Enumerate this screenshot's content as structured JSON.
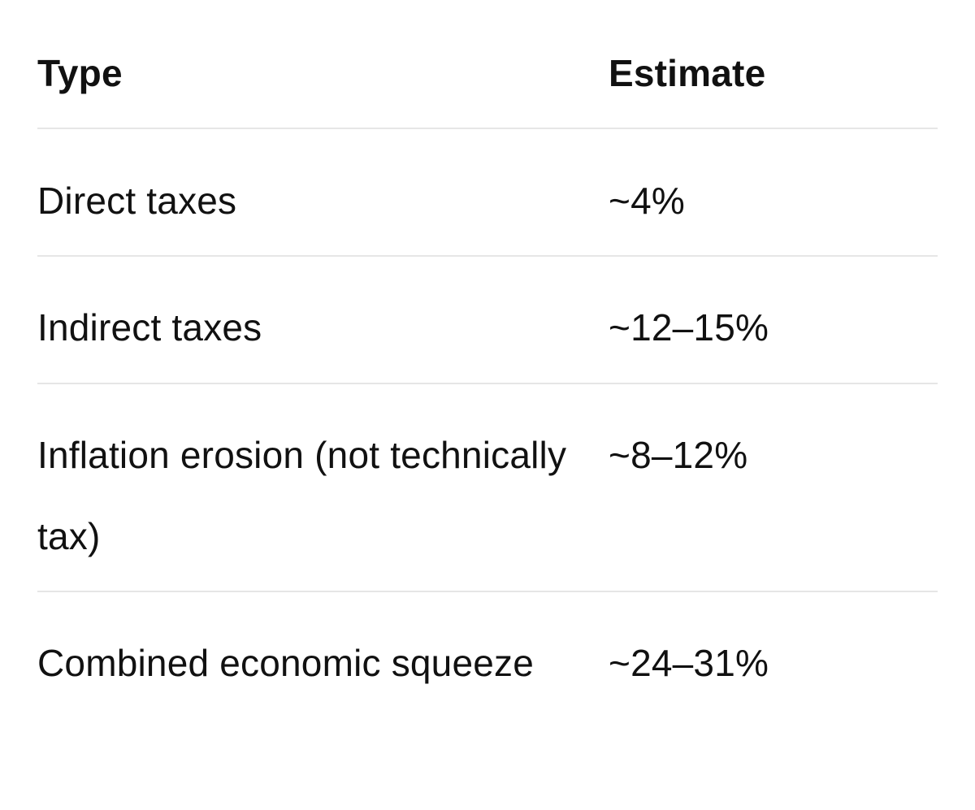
{
  "table": {
    "headers": {
      "type": "Type",
      "estimate": "Estimate"
    },
    "rows": [
      {
        "type": "Direct taxes",
        "estimate": "~4%"
      },
      {
        "type": "Indirect taxes",
        "estimate": "~12–15%"
      },
      {
        "type": "Inflation erosion (not technically tax)",
        "estimate": "~8–12%"
      },
      {
        "type": "Combined economic squeeze",
        "estimate": "~24–31%"
      }
    ]
  }
}
